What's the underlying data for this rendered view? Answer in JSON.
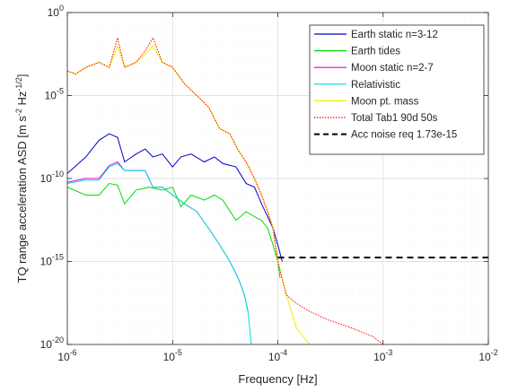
{
  "chart_data": {
    "type": "line",
    "x_scale": "log",
    "y_scale": "log",
    "xlabel": "Frequency [Hz]",
    "ylabel_main": "TQ range acceleration ASD [m s",
    "ylabel_sup1": "-2",
    "ylabel_mid": " Hz",
    "ylabel_sup2": "-1/2",
    "ylabel_end": "]",
    "xlim": [
      1e-06,
      0.01
    ],
    "ylim": [
      1e-20,
      1
    ],
    "grid": true,
    "legend_position": "top-right",
    "x_ticks": [
      {
        "value": 1e-06,
        "base": "10",
        "exp": "-6"
      },
      {
        "value": 1e-05,
        "base": "10",
        "exp": "-5"
      },
      {
        "value": 0.0001,
        "base": "10",
        "exp": "-4"
      },
      {
        "value": 0.001,
        "base": "10",
        "exp": "-3"
      },
      {
        "value": 0.01,
        "base": "10",
        "exp": "-2"
      }
    ],
    "y_ticks": [
      {
        "value": 1e-20,
        "base": "10",
        "exp": "-20"
      },
      {
        "value": 1e-15,
        "base": "10",
        "exp": "-15"
      },
      {
        "value": 1e-10,
        "base": "10",
        "exp": "-10"
      },
      {
        "value": 1e-05,
        "base": "10",
        "exp": "-5"
      },
      {
        "value": 1,
        "base": "10",
        "exp": "0"
      }
    ],
    "series": [
      {
        "name": "Earth static n=3-12",
        "color": "#0000cc",
        "dash": "solid",
        "x": [
          1e-06,
          1.5e-06,
          2e-06,
          2.5e-06,
          3e-06,
          3.5e-06,
          4.5e-06,
          5.5e-06,
          6.5e-06,
          8e-06,
          1e-05,
          1.2e-05,
          1.5e-05,
          2e-05,
          2.5e-05,
          3e-05,
          4e-05,
          5e-05,
          6e-05,
          7e-05,
          8e-05,
          9e-05,
          0.0001,
          0.00011
        ],
        "y": [
          2e-10,
          2e-09,
          2e-08,
          5e-08,
          3e-08,
          1e-09,
          3e-09,
          6e-09,
          2e-09,
          3e-09,
          5e-10,
          2e-09,
          3e-09,
          1e-09,
          2e-09,
          8e-10,
          5e-10,
          5e-11,
          3e-11,
          3e-12,
          5e-13,
          1e-13,
          1e-14,
          1e-15
        ]
      },
      {
        "name": "Earth tides",
        "color": "#00dd00",
        "dash": "solid",
        "x": [
          1e-06,
          1.5e-06,
          2e-06,
          2.5e-06,
          3e-06,
          3.5e-06,
          4.5e-06,
          6e-06,
          8e-06,
          1e-05,
          1.2e-05,
          1.5e-05,
          2e-05,
          2.5e-05,
          3e-05,
          4e-05,
          5e-05,
          6e-05,
          7e-05,
          8e-05,
          9e-05,
          0.0001,
          0.000105
        ],
        "y": [
          3e-11,
          1e-11,
          1e-11,
          5e-11,
          4e-11,
          3e-12,
          2e-11,
          3e-11,
          2e-11,
          3e-11,
          2e-12,
          1e-11,
          5e-12,
          1e-11,
          5e-12,
          3e-13,
          1e-12,
          5e-13,
          3e-13,
          1e-13,
          1e-14,
          1e-15,
          1e-16
        ]
      },
      {
        "name": "Moon static n=2-7",
        "color": "#e000e0",
        "dash": "solid",
        "x": [
          1e-06,
          1.5e-06,
          2e-06,
          2.5e-06,
          3e-06,
          3.5e-06,
          4.5e-06,
          5.5e-06,
          6.5e-06,
          8e-06,
          1e-05,
          1.3e-05,
          1.7e-05,
          2.2e-05,
          2.8e-05,
          3.5e-05,
          4.2e-05,
          4.8e-05,
          5.2e-05
        ],
        "y": [
          6e-11,
          1e-10,
          1e-10,
          6e-10,
          1e-09,
          3e-10,
          3e-10,
          3e-10,
          3e-11,
          3e-11,
          1e-11,
          3e-12,
          1e-12,
          1e-13,
          1e-14,
          1e-15,
          1e-16,
          1e-17,
          1e-18
        ]
      },
      {
        "name": "Relativistic",
        "color": "#00dddd",
        "dash": "solid",
        "x": [
          1e-06,
          1.5e-06,
          2e-06,
          2.5e-06,
          3e-06,
          3.5e-06,
          4.5e-06,
          5.5e-06,
          6.5e-06,
          8e-06,
          1e-05,
          1.3e-05,
          1.7e-05,
          2.2e-05,
          2.8e-05,
          3.5e-05,
          4.2e-05,
          4.8e-05,
          5.2e-05,
          5.6e-05
        ],
        "y": [
          5e-11,
          8e-11,
          8e-11,
          5e-10,
          8e-10,
          3e-10,
          3e-10,
          3e-10,
          3e-11,
          3e-11,
          1e-11,
          3e-12,
          1e-12,
          1e-13,
          1e-14,
          1e-15,
          1e-16,
          1e-17,
          1e-18,
          1e-20
        ]
      },
      {
        "name": "Moon pt. mass",
        "color": "#eeee00",
        "dash": "solid",
        "x": [
          1e-06,
          1.2e-06,
          1.5e-06,
          2e-06,
          2.5e-06,
          3e-06,
          3.5e-06,
          4.5e-06,
          5.5e-06,
          6.5e-06,
          8e-06,
          1e-05,
          1.3e-05,
          1.7e-05,
          2.2e-05,
          2.8e-05,
          3.5e-05,
          4.2e-05,
          5e-05,
          6e-05,
          7e-05,
          8e-05,
          9e-05,
          0.0001,
          0.00012,
          0.00015,
          0.0002
        ],
        "y": [
          0.0003,
          0.0002,
          0.0005,
          0.001,
          0.0005,
          0.01,
          0.0005,
          0.001,
          0.003,
          0.01,
          0.001,
          0.0005,
          5e-05,
          1e-05,
          2e-06,
          1e-07,
          5e-08,
          5e-09,
          1e-09,
          1e-10,
          1e-11,
          1e-12,
          1e-13,
          1e-15,
          1e-17,
          1e-19,
          1e-20
        ]
      },
      {
        "name": "Total Tab1 90d 50s",
        "color": "#ff0000",
        "dash": "dotted",
        "x": [
          1e-06,
          1.2e-06,
          1.5e-06,
          2e-06,
          2.5e-06,
          3e-06,
          3.5e-06,
          4.5e-06,
          5.5e-06,
          6.5e-06,
          8e-06,
          1e-05,
          1.3e-05,
          1.7e-05,
          2.2e-05,
          2.8e-05,
          3.5e-05,
          4.2e-05,
          5e-05,
          6e-05,
          7e-05,
          8e-05,
          9e-05,
          0.0001,
          0.00012,
          0.00015,
          0.0002,
          0.0003,
          0.0005,
          0.0008,
          0.001
        ],
        "y": [
          0.0003,
          0.0002,
          0.0005,
          0.001,
          0.0005,
          0.03,
          0.0005,
          0.001,
          0.005,
          0.03,
          0.001,
          0.0005,
          5e-05,
          1e-05,
          2e-06,
          1e-07,
          5e-08,
          5e-09,
          1e-09,
          1e-10,
          1e-11,
          1e-12,
          1e-13,
          1e-15,
          1e-17,
          3e-18,
          1e-18,
          3e-19,
          1e-19,
          3e-20,
          1e-20
        ]
      },
      {
        "name": "Acc noise req 1.73e-15",
        "color": "#000000",
        "dash": "dashed",
        "x": [
          0.0001,
          0.01
        ],
        "y": [
          1.73e-15,
          1.73e-15
        ]
      }
    ]
  }
}
